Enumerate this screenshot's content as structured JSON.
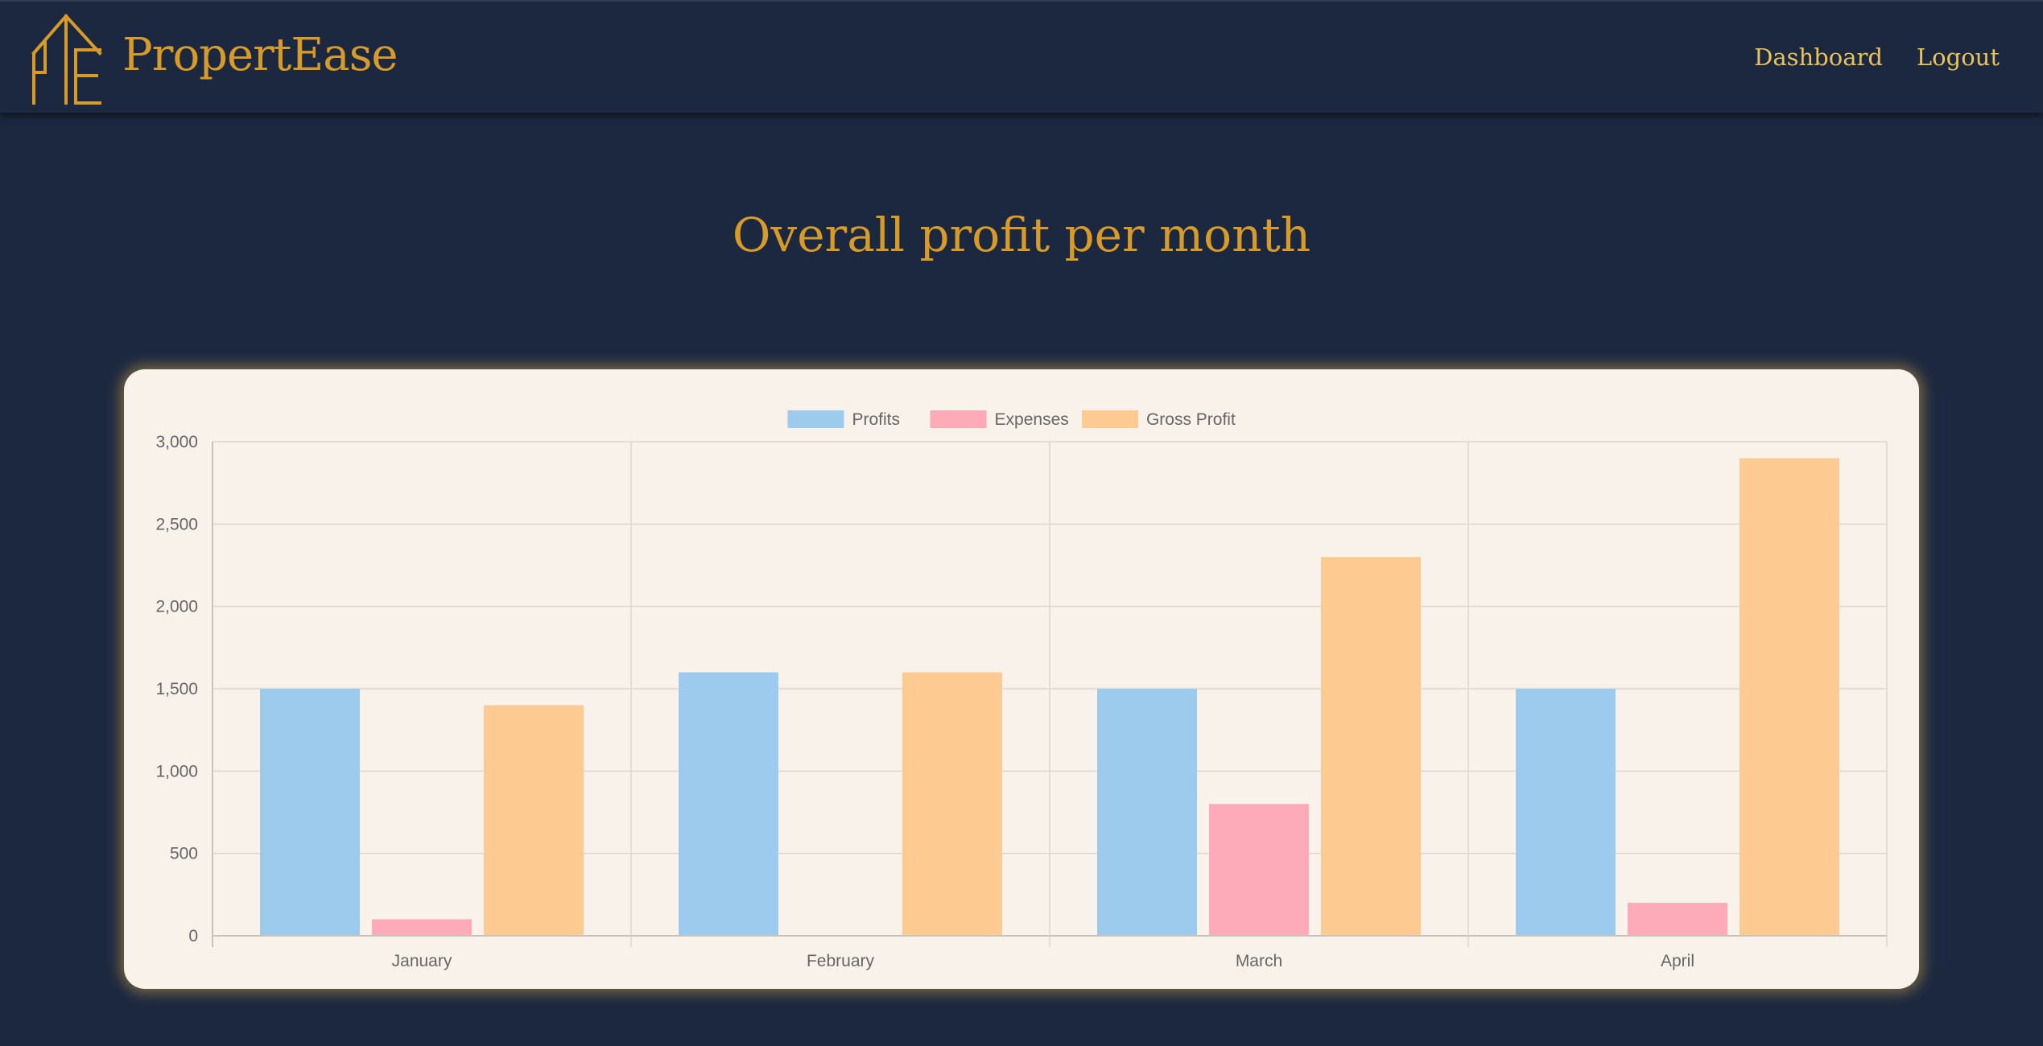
{
  "header": {
    "brand": "PropertEase",
    "nav": [
      {
        "label": "Dashboard"
      },
      {
        "label": "Logout"
      }
    ]
  },
  "colors": {
    "background": "#1c2840",
    "accent": "#d79b2a",
    "nav": "#e8c25a",
    "card": "#f9f2ea"
  },
  "page_title": "Overall profit per month",
  "chart_data": {
    "type": "bar",
    "title": "",
    "xlabel": "",
    "ylabel": "",
    "categories": [
      "January",
      "February",
      "March",
      "April"
    ],
    "ylim": [
      0,
      3000
    ],
    "yticks": [
      0,
      500,
      1000,
      1500,
      2000,
      2500,
      3000
    ],
    "ytick_labels": [
      "0",
      "500",
      "1,000",
      "1,500",
      "2,000",
      "2,500",
      "3,000"
    ],
    "grid": true,
    "legend_position": "top-center",
    "series": [
      {
        "name": "Profits",
        "values": [
          1500,
          1600,
          1500,
          1500
        ],
        "color": "#9ccbee"
      },
      {
        "name": "Expenses",
        "values": [
          100,
          0,
          800,
          200
        ],
        "color": "#fdabb8"
      },
      {
        "name": "Gross Profit",
        "values": [
          1400,
          1600,
          2300,
          2900
        ],
        "color": "#fdcb92"
      }
    ]
  }
}
